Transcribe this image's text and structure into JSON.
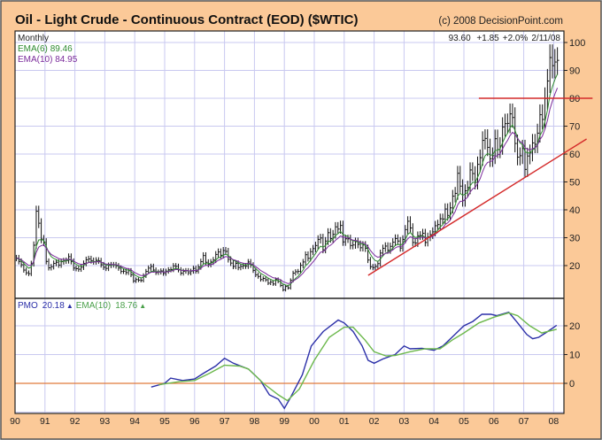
{
  "chart_data": [
    {
      "type": "ohlc-bar",
      "title": "Oil - Light Crude - Continuous Contract (EOD) ($WTIC)",
      "copyright": "(c) 2008 DecisionPoint.com",
      "period": "Monthly",
      "quote": {
        "last": "93.60",
        "change": "+1.85",
        "pct": "+2.0%",
        "date": "2/11/08"
      },
      "legend": [
        {
          "name": "EMA(6)",
          "value": "89.46",
          "color": "#2e8b2e"
        },
        {
          "name": "EMA(10)",
          "value": "84.95",
          "color": "#7a2a9a"
        }
      ],
      "start_year": 1990,
      "monthly_close": [
        22.7,
        21.5,
        20.3,
        18.4,
        17.4,
        17.1,
        20.7,
        27.3,
        39.5,
        35.2,
        29.5,
        28.4,
        21.5,
        19.2,
        19.6,
        20.8,
        21.2,
        20.2,
        21.4,
        21.7,
        21.8,
        23.2,
        21.5,
        19.1,
        18.9,
        18.7,
        19.4,
        20.8,
        22.1,
        22.4,
        21.8,
        21.4,
        21.9,
        21.7,
        20.3,
        19.4,
        19.0,
        20.1,
        20.3,
        20.3,
        19.9,
        19.1,
        17.9,
        18.0,
        17.5,
        18.2,
        16.7,
        14.5,
        15.0,
        14.8,
        14.7,
        16.4,
        17.9,
        19.1,
        19.7,
        18.4,
        17.5,
        17.7,
        18.1,
        17.2,
        18.0,
        18.5,
        18.6,
        19.9,
        19.7,
        18.5,
        17.3,
        18.0,
        18.2,
        17.4,
        18.0,
        19.0,
        18.0,
        19.5,
        21.4,
        23.6,
        21.2,
        20.4,
        21.3,
        22.0,
        24.0,
        24.9,
        23.7,
        25.4,
        25.1,
        22.2,
        20.9,
        19.7,
        20.8,
        19.3,
        19.7,
        19.9,
        19.8,
        21.3,
        20.2,
        18.3,
        16.7,
        16.1,
        15.0,
        15.4,
        14.9,
        13.7,
        14.1,
        13.4,
        15.0,
        14.4,
        12.9,
        11.3,
        12.5,
        12.0,
        14.7,
        17.3,
        17.8,
        17.9,
        20.1,
        21.3,
        23.9,
        22.6,
        25.0,
        26.1,
        27.2,
        29.4,
        29.9,
        25.7,
        28.8,
        31.8,
        29.7,
        31.2,
        33.9,
        33.1,
        34.4,
        28.5,
        29.6,
        29.6,
        27.2,
        27.4,
        28.6,
        27.6,
        26.4,
        27.4,
        26.2,
        22.0,
        19.6,
        19.3,
        19.7,
        20.7,
        24.5,
        26.2,
        27.0,
        25.5,
        26.9,
        28.4,
        29.7,
        28.8,
        26.3,
        29.4,
        32.9,
        35.9,
        33.5,
        28.3,
        28.1,
        30.7,
        30.8,
        31.6,
        28.3,
        30.3,
        31.1,
        32.1,
        34.3,
        34.7,
        36.8,
        36.7,
        40.3,
        38.0,
        40.7,
        44.9,
        45.9,
        53.1,
        48.5,
        43.3,
        46.8,
        48.0,
        54.3,
        53.0,
        49.8,
        56.3,
        58.7,
        64.9,
        65.6,
        62.4,
        58.3,
        59.4,
        65.5,
        61.6,
        62.9,
        69.7,
        70.9,
        71.0,
        74.4,
        73.1,
        63.8,
        58.9,
        59.4,
        62.0,
        54.5,
        59.3,
        60.4,
        64.0,
        63.5,
        67.5,
        74.1,
        72.4,
        79.9,
        86.2,
        94.6,
        91.7,
        93.0,
        93.6
      ],
      "ylim": [
        10,
        104
      ],
      "yticks": [
        20,
        30,
        40,
        50,
        60,
        70,
        80,
        90,
        100
      ],
      "trendlines": [
        {
          "name": "resistance-80",
          "color": "#d42a2a",
          "points": [
            [
              2005.5,
              80
            ],
            [
              2009.3,
              80
            ]
          ]
        },
        {
          "name": "uptrend",
          "color": "#d42a2a",
          "points": [
            [
              2001.8,
              16.5
            ],
            [
              2009.1,
              65.4
            ]
          ]
        }
      ]
    },
    {
      "type": "line",
      "legend": [
        {
          "name": "PMO",
          "value": "20.18",
          "arrow": "▲",
          "color": "#2b2fa8"
        },
        {
          "name": "EMA(10)",
          "value": "18.76",
          "arrow": "▲",
          "color": "#4aa04a"
        }
      ],
      "ylim": [
        -10.3,
        29.5
      ],
      "yticks": [
        0,
        10,
        20
      ],
      "zero_line_color": "#e07a3a",
      "series": [
        {
          "name": "PMO",
          "color": "#2b2fa8",
          "points": [
            [
              1994.55,
              -1.3
            ],
            [
              1995.0,
              0
            ],
            [
              1995.2,
              1.8
            ],
            [
              1995.6,
              1.0
            ],
            [
              1996.0,
              1.5
            ],
            [
              1996.3,
              3.5
            ],
            [
              1996.7,
              6
            ],
            [
              1997.0,
              8.7
            ],
            [
              1997.3,
              7
            ],
            [
              1997.8,
              5
            ],
            [
              1998.2,
              1
            ],
            [
              1998.5,
              -4
            ],
            [
              1998.8,
              -5.5
            ],
            [
              1999.0,
              -8.7
            ],
            [
              1999.2,
              -5
            ],
            [
              1999.6,
              3
            ],
            [
              1999.9,
              13
            ],
            [
              2000.3,
              18
            ],
            [
              2000.8,
              22
            ],
            [
              2001.0,
              21
            ],
            [
              2001.3,
              18
            ],
            [
              2001.6,
              13
            ],
            [
              2001.8,
              8
            ],
            [
              2002.0,
              7
            ],
            [
              2002.3,
              8.5
            ],
            [
              2002.7,
              10
            ],
            [
              2003.0,
              13
            ],
            [
              2003.2,
              12
            ],
            [
              2003.6,
              12.2
            ],
            [
              2004.0,
              11.5
            ],
            [
              2004.3,
              13
            ],
            [
              2004.7,
              17
            ],
            [
              2005.0,
              20
            ],
            [
              2005.3,
              21.5
            ],
            [
              2005.6,
              24
            ],
            [
              2005.9,
              24
            ],
            [
              2006.1,
              23.5
            ],
            [
              2006.5,
              24.7
            ],
            [
              2006.8,
              21
            ],
            [
              2007.1,
              17
            ],
            [
              2007.3,
              15.5
            ],
            [
              2007.5,
              16
            ],
            [
              2007.8,
              18
            ],
            [
              2008.1,
              20.2
            ]
          ]
        },
        {
          "name": "EMA(10)",
          "color": "#6cb84c",
          "points": [
            [
              1994.8,
              -0.5
            ],
            [
              1995.5,
              0.6
            ],
            [
              1996.0,
              1
            ],
            [
              1996.5,
              3.5
            ],
            [
              1997.0,
              6.3
            ],
            [
              1997.5,
              6
            ],
            [
              1997.8,
              5
            ],
            [
              1998.3,
              0
            ],
            [
              1998.8,
              -4
            ],
            [
              1999.1,
              -6
            ],
            [
              1999.5,
              -2
            ],
            [
              2000.0,
              8
            ],
            [
              2000.5,
              16
            ],
            [
              2001.0,
              19.5
            ],
            [
              2001.3,
              19.5
            ],
            [
              2001.7,
              15
            ],
            [
              2002.0,
              11
            ],
            [
              2002.4,
              9.5
            ],
            [
              2002.7,
              9.7
            ],
            [
              2003.2,
              11
            ],
            [
              2003.7,
              12
            ],
            [
              2004.2,
              12
            ],
            [
              2004.6,
              15
            ],
            [
              2005.0,
              17.5
            ],
            [
              2005.5,
              21
            ],
            [
              2006.0,
              23
            ],
            [
              2006.5,
              24.5
            ],
            [
              2006.8,
              23.5
            ],
            [
              2007.2,
              20
            ],
            [
              2007.6,
              17.5
            ],
            [
              2008.1,
              18.8
            ]
          ]
        }
      ]
    }
  ],
  "xaxis": {
    "labels": [
      "90",
      "91",
      "92",
      "93",
      "94",
      "95",
      "96",
      "97",
      "98",
      "99",
      "00",
      "01",
      "02",
      "03",
      "04",
      "05",
      "06",
      "07",
      "08"
    ]
  },
  "colors": {
    "frame": "#fbc998",
    "grid": "#c9c9f0",
    "bars": "#111111"
  }
}
